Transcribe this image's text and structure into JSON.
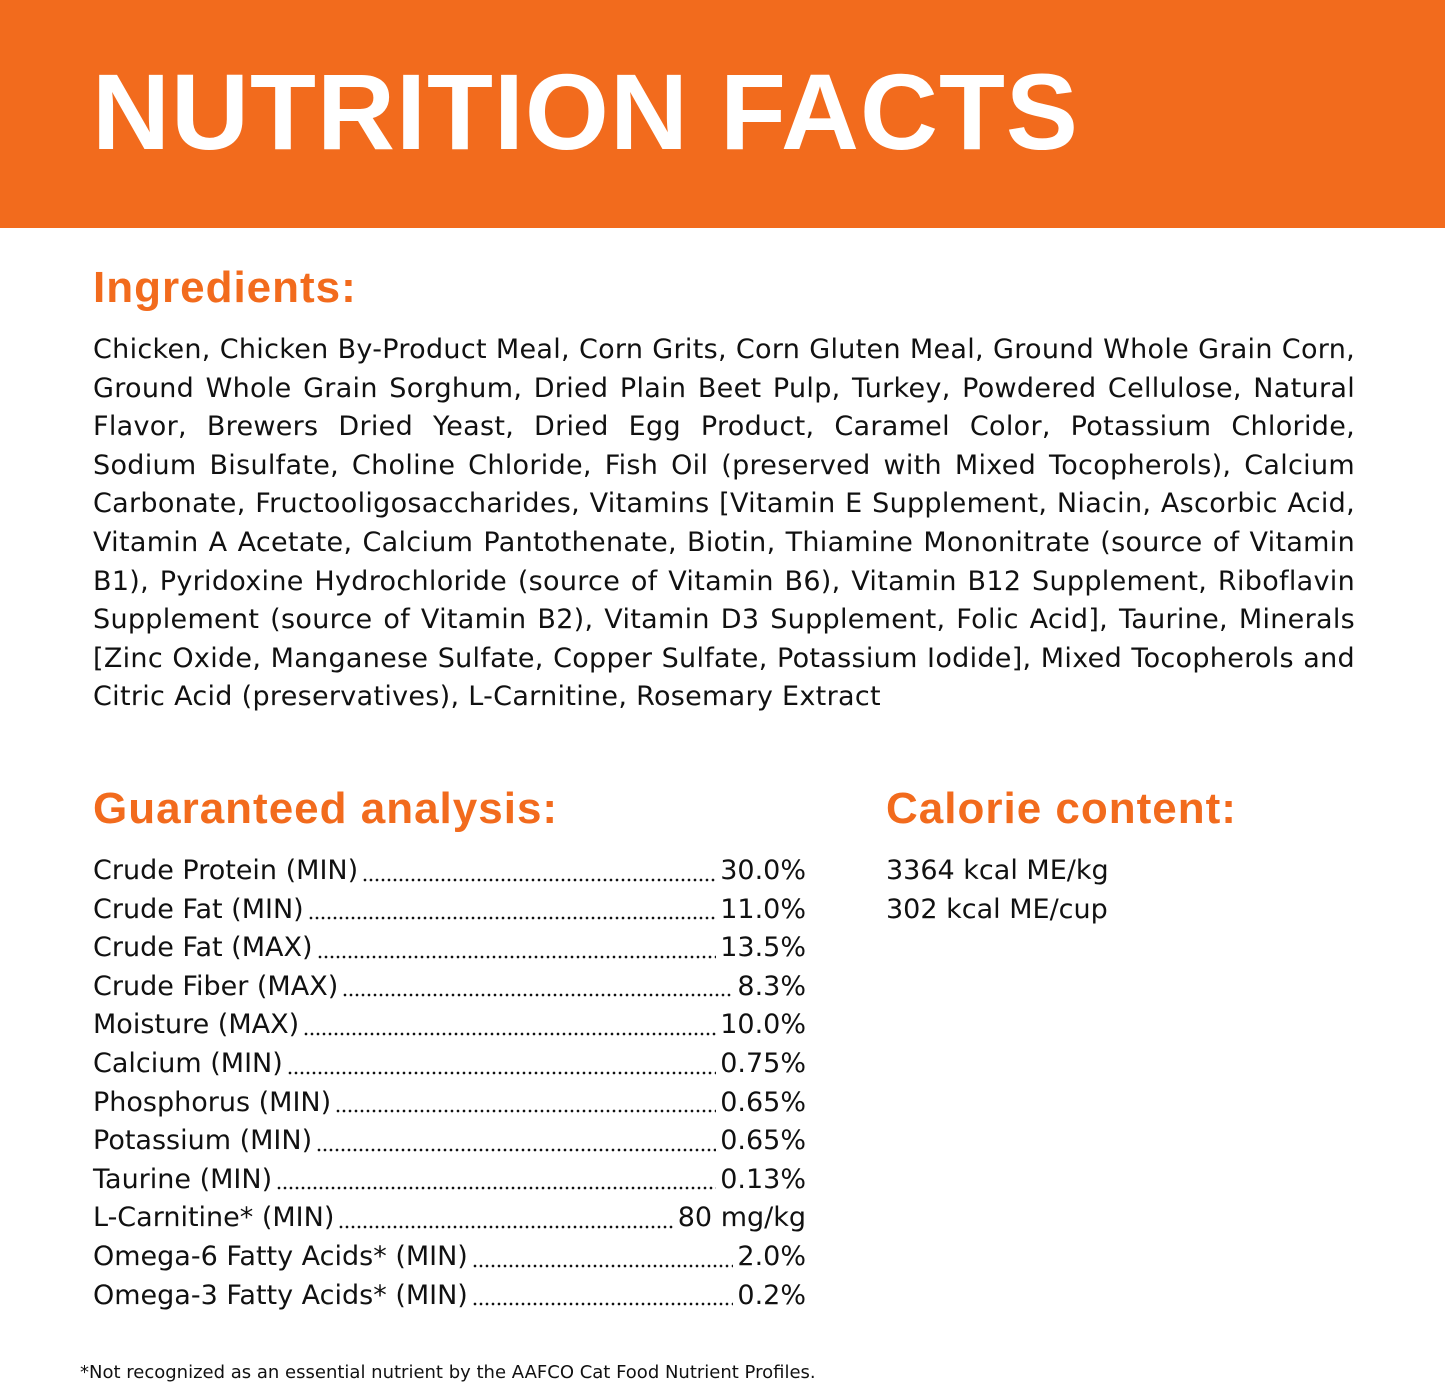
{
  "header": {
    "title": "NUTRITION FACTS"
  },
  "ingredients": {
    "heading": "Ingredients:",
    "text": "Chicken, Chicken By-Product Meal, Corn Grits, Corn Gluten Meal, Ground Whole Grain Corn, Ground Whole Grain Sorghum, Dried Plain Beet Pulp, Turkey, Powdered Cellulose, Natural Flavor, Brewers Dried Yeast, Dried Egg Product, Caramel Color, Potassium Chloride, Sodium Bisulfate, Choline Chloride, Fish Oil (preserved with Mixed Tocopherols), Calcium Carbonate, Fructooligosaccharides, Vitamins [Vitamin E Supplement, Niacin, Ascorbic Acid, Vitamin A Acetate, Calcium Pantothenate, Biotin, Thiamine Mononitrate (source of Vitamin B1), Pyridoxine Hydrochloride (source of Vitamin B6), Vitamin B12 Supplement, Riboflavin Supplement (source of Vitamin B2), Vitamin D3 Supplement, Folic Acid], Taurine, Minerals [Zinc Oxide, Manganese Sulfate, Copper Sulfate, Potassium Iodide], Mixed Tocopherols and Citric Acid (preservatives), L-Carnitine, Rosemary Extract"
  },
  "analysis": {
    "heading": "Guaranteed analysis:",
    "rows": [
      [
        "Crude Protein (MIN)",
        "30.0%"
      ],
      [
        "Crude Fat (MIN)",
        "11.0%"
      ],
      [
        "Crude Fat (MAX)",
        "13.5%"
      ],
      [
        "Crude Fiber (MAX)",
        "8.3%"
      ],
      [
        "Moisture (MAX)",
        "10.0%"
      ],
      [
        "Calcium (MIN)",
        "0.75%"
      ],
      [
        "Phosphorus (MIN)",
        "0.65%"
      ],
      [
        "Potassium (MIN)",
        "0.65%"
      ],
      [
        "Taurine (MIN)",
        "0.13%"
      ],
      [
        "L-Carnitine* (MIN)",
        "80 mg/kg"
      ],
      [
        "Omega-6 Fatty Acids* (MIN)",
        "2.0%"
      ],
      [
        "Omega-3 Fatty Acids* (MIN)",
        "0.2%"
      ]
    ]
  },
  "calories": {
    "heading": "Calorie content:",
    "lines": [
      "3364 kcal ME/kg",
      "302 kcal ME/cup"
    ]
  },
  "footnote": "*Not recognized as an essential nutrient by the AAFCO Cat Food Nutrient Profiles."
}
